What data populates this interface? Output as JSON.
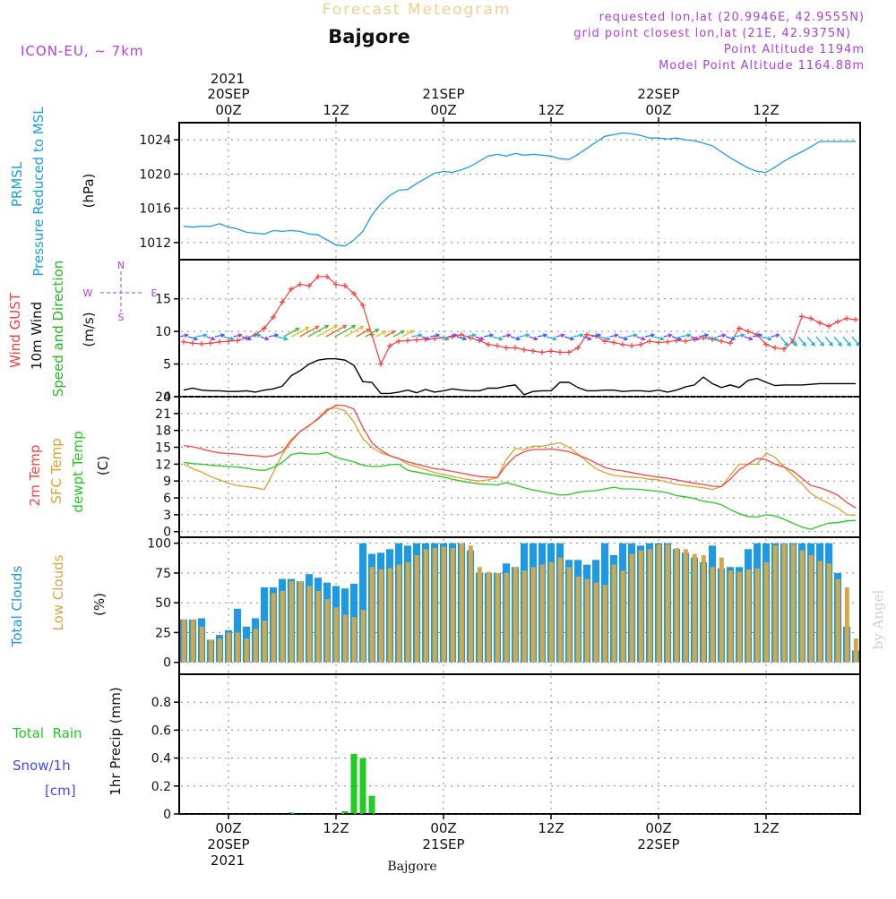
{
  "header": {
    "title": "Forecast Meteogram",
    "location": "Bajgore",
    "model": "ICON-EU, ~ 7km",
    "requested": "requested lon,lat (20.9946E, 42.9555N)",
    "grid_point": "grid point closest lon,lat (21E, 42.9375N)",
    "point_altitude": "Point Altitude 1194m",
    "model_altitude": "Model Point Altitude 1164.88m",
    "credit": "by Angel",
    "footer": "Bajgore"
  },
  "colors": {
    "pressure": "#1aa0e6",
    "gust": "#ff3b3b",
    "wind": "#000000",
    "temp2m": "#ff4444",
    "sfc_temp": "#e0a030",
    "dewpt": "#22cc22",
    "total_clouds": "#1a9ae8",
    "low_clouds": "#d4a848",
    "rain": "#22cc22",
    "snow": "#4444ff",
    "purple": "#b040e0"
  },
  "time_axis": {
    "top_year": "2021",
    "top": [
      {
        "t": 0,
        "date": "20SEP",
        "hour": "00Z"
      },
      {
        "t": 12,
        "date": "",
        "hour": "12Z"
      },
      {
        "t": 24,
        "date": "21SEP",
        "hour": "00Z"
      },
      {
        "t": 36,
        "date": "",
        "hour": "12Z"
      },
      {
        "t": 48,
        "date": "22SEP",
        "hour": "00Z"
      },
      {
        "t": 60,
        "date": "",
        "hour": "12Z"
      }
    ],
    "bottom_year": "2021",
    "bottom": [
      {
        "t": 0,
        "hour": "00Z",
        "date": "20SEP"
      },
      {
        "t": 12,
        "hour": "12Z",
        "date": ""
      },
      {
        "t": 24,
        "hour": "00Z",
        "date": "21SEP"
      },
      {
        "t": 36,
        "hour": "12Z",
        "date": ""
      },
      {
        "t": 48,
        "hour": "00Z",
        "date": "22SEP"
      },
      {
        "t": 60,
        "hour": "12Z",
        "date": ""
      }
    ]
  },
  "panel_labels": {
    "pressure": {
      "a": "PRMSL",
      "b": "Pressure Reduced to MSL",
      "unit": "(hPa)"
    },
    "wind": {
      "a": "Wind GUST",
      "b": "10m Wind",
      "c": "Speed and Direction",
      "unit": "(m/s)",
      "compass_ns": "N",
      "compass_s": "S",
      "compass_w": "W",
      "compass_e": "E"
    },
    "temp": {
      "a": "2m Temp",
      "b": "SFC Temp",
      "c": "dewpt Temp",
      "unit": "(C)"
    },
    "clouds": {
      "a": "Total Clouds",
      "b": "Low Clouds",
      "unit": "(%)"
    },
    "precip": {
      "a": "Total  Rain",
      "b": "Snow/1h",
      "c": "[cm]",
      "unit": "1hr Precip (mm)"
    }
  },
  "chart_data": [
    {
      "type": "line",
      "title": "PRMSL Pressure Reduced to MSL",
      "ylabel": "(hPa)",
      "ylim": [
        1010,
        1026
      ],
      "yticks": [
        "1012",
        "1016",
        "1020",
        "1024"
      ],
      "x_hours_from_20SEP_00Z": [
        -5,
        -4,
        -3,
        -2,
        -1,
        0,
        1,
        2,
        3,
        4,
        5,
        6,
        7,
        8,
        9,
        10,
        11,
        12,
        13,
        14,
        15,
        16,
        17,
        18,
        19,
        20,
        21,
        22,
        23,
        24,
        25,
        26,
        27,
        28,
        29,
        30,
        31,
        32,
        33,
        34,
        35,
        36,
        37,
        38,
        39,
        40,
        41,
        42,
        43,
        44,
        45,
        46,
        47,
        48,
        49,
        50,
        51,
        52,
        53,
        54,
        55,
        56,
        57,
        58,
        59,
        60,
        61,
        62,
        63,
        64,
        65,
        66,
        67,
        68,
        69,
        70
      ],
      "series": [
        {
          "name": "PRMSL",
          "values": [
            1013.9,
            1013.8,
            1013.9,
            1013.9,
            1014.2,
            1013.8,
            1013.6,
            1013.2,
            1013.1,
            1013.0,
            1013.4,
            1013.3,
            1013.4,
            1013.3,
            1013.0,
            1012.9,
            1012.3,
            1011.7,
            1011.6,
            1012.3,
            1013.3,
            1015.2,
            1016.5,
            1017.5,
            1018.1,
            1018.2,
            1018.9,
            1019.5,
            1020.1,
            1020.3,
            1020.2,
            1020.5,
            1020.9,
            1021.5,
            1022.1,
            1022.3,
            1022.1,
            1022.4,
            1022.2,
            1022.3,
            1022.2,
            1022.1,
            1021.8,
            1021.7,
            1022.3,
            1023.0,
            1023.7,
            1024.4,
            1024.6,
            1024.8,
            1024.7,
            1024.5,
            1024.2,
            1024.2,
            1024.1,
            1024.2,
            1024.0,
            1023.9,
            1023.6,
            1023.3,
            1022.6,
            1021.9,
            1021.3,
            1020.7,
            1020.3,
            1020.2,
            1020.8,
            1021.5,
            1022.1,
            1022.6,
            1023.2,
            1023.8,
            1023.8,
            1023.8,
            1023.8,
            1023.8
          ]
        }
      ]
    },
    {
      "type": "line",
      "title": "Wind GUST / 10m Wind Speed and Direction",
      "ylabel": "(m/s)",
      "ylim": [
        0,
        21
      ],
      "yticks": [
        "0",
        "5",
        "10",
        "15"
      ],
      "x_hours_from_20SEP_00Z": [
        -5,
        -4,
        -3,
        -2,
        -1,
        0,
        1,
        2,
        3,
        4,
        5,
        6,
        7,
        8,
        9,
        10,
        11,
        12,
        13,
        14,
        15,
        16,
        17,
        18,
        19,
        20,
        21,
        22,
        23,
        24,
        25,
        26,
        27,
        28,
        29,
        30,
        31,
        32,
        33,
        34,
        35,
        36,
        37,
        38,
        39,
        40,
        41,
        42,
        43,
        44,
        45,
        46,
        47,
        48,
        49,
        50,
        51,
        52,
        53,
        54,
        55,
        56,
        57,
        58,
        59,
        60,
        61,
        62,
        63,
        64,
        65,
        66,
        67,
        68,
        69,
        70
      ],
      "series": [
        {
          "name": "Wind GUST",
          "values": [
            8.4,
            8.2,
            8.1,
            8.2,
            8.4,
            8.5,
            8.6,
            9.0,
            9.5,
            10.5,
            12.2,
            14.5,
            16.5,
            17.2,
            17.0,
            18.4,
            18.4,
            17.2,
            17.0,
            15.8,
            14.0,
            9.5,
            5.0,
            7.8,
            8.5,
            8.6,
            8.7,
            8.8,
            8.9,
            9.0,
            9.2,
            9.5,
            9.0,
            8.6,
            8.0,
            7.8,
            7.5,
            7.5,
            7.2,
            7.0,
            6.8,
            7.0,
            6.8,
            6.8,
            7.5,
            9.5,
            9.3,
            8.5,
            8.3,
            8.0,
            7.8,
            8.0,
            8.5,
            8.3,
            8.4,
            8.6,
            8.5,
            8.8,
            9.0,
            8.8,
            8.5,
            8.2,
            10.5,
            10.0,
            9.5,
            8.0,
            7.5,
            7.3,
            8.5,
            12.3,
            12.0,
            11.3,
            10.8,
            11.5,
            12.0,
            11.8
          ]
        },
        {
          "name": "10m Wind",
          "values": [
            1.0,
            1.3,
            1.0,
            0.9,
            0.9,
            0.8,
            0.8,
            0.9,
            0.7,
            1.0,
            1.2,
            1.6,
            3.2,
            4.0,
            5.0,
            5.6,
            5.8,
            5.8,
            5.6,
            4.8,
            2.3,
            2.2,
            0.5,
            0.5,
            0.7,
            1.0,
            0.6,
            1.1,
            0.7,
            0.9,
            1.2,
            1.0,
            0.9,
            0.9,
            1.3,
            1.3,
            1.6,
            1.8,
            0.3,
            0.8,
            0.9,
            0.9,
            2.2,
            2.2,
            1.4,
            0.9,
            0.9,
            1.0,
            1.0,
            0.8,
            0.9,
            0.9,
            0.8,
            1.0,
            0.7,
            1.0,
            1.5,
            1.8,
            3.0,
            2.0,
            1.4,
            1.8,
            1.4,
            2.5,
            2.8,
            2.2,
            1.7,
            1.8,
            1.8,
            1.8,
            1.9,
            2.0,
            2.0,
            2.0,
            2.0,
            2.0
          ]
        }
      ]
    },
    {
      "type": "line",
      "title": "2m Temp / SFC Temp / dewpt Temp",
      "ylabel": "(C)",
      "ylim": [
        -1,
        24
      ],
      "yticks": [
        "0",
        "3",
        "6",
        "9",
        "12",
        "15",
        "18",
        "21",
        "24"
      ],
      "x_hours_from_20SEP_00Z": [
        -5,
        -4,
        -3,
        -2,
        -1,
        0,
        1,
        2,
        3,
        4,
        5,
        6,
        7,
        8,
        9,
        10,
        11,
        12,
        13,
        14,
        15,
        16,
        17,
        18,
        19,
        20,
        21,
        22,
        23,
        24,
        25,
        26,
        27,
        28,
        29,
        30,
        31,
        32,
        33,
        34,
        35,
        36,
        37,
        38,
        39,
        40,
        41,
        42,
        43,
        44,
        45,
        46,
        47,
        48,
        49,
        50,
        51,
        52,
        53,
        54,
        55,
        56,
        57,
        58,
        59,
        60,
        61,
        62,
        63,
        64,
        65,
        66,
        67,
        68,
        69,
        70
      ],
      "series": [
        {
          "name": "2m Temp",
          "values": [
            15.3,
            15.1,
            14.7,
            14.3,
            14.0,
            13.9,
            13.8,
            13.6,
            13.5,
            13.3,
            13.5,
            14.2,
            16.3,
            17.8,
            18.9,
            20.0,
            21.5,
            22.5,
            22.4,
            21.8,
            18.5,
            15.8,
            14.5,
            13.5,
            13.0,
            12.4,
            12.0,
            11.6,
            11.2,
            11.0,
            10.7,
            10.4,
            10.1,
            9.8,
            9.7,
            9.6,
            11.8,
            13.4,
            14.2,
            14.6,
            14.6,
            14.7,
            14.5,
            14.2,
            13.6,
            13.0,
            12.2,
            11.4,
            11.0,
            10.8,
            10.5,
            10.2,
            9.9,
            9.7,
            9.5,
            9.2,
            8.9,
            8.6,
            8.4,
            8.1,
            8.0,
            9.3,
            11.0,
            12.0,
            13.0,
            12.8,
            12.0,
            11.5,
            10.8,
            9.5,
            8.2,
            7.8,
            7.2,
            6.5,
            5.2,
            4.2
          ]
        },
        {
          "name": "SFC Temp",
          "values": [
            12.0,
            11.2,
            10.6,
            9.8,
            9.2,
            8.6,
            8.2,
            8.0,
            7.8,
            7.5,
            10.5,
            13.7,
            16.0,
            17.8,
            18.8,
            20.2,
            21.8,
            22.0,
            21.5,
            19.5,
            16.5,
            15.0,
            14.0,
            13.5,
            13.0,
            12.0,
            11.5,
            11.0,
            10.5,
            10.2,
            9.8,
            9.5,
            9.2,
            9.0,
            9.2,
            9.6,
            12.8,
            14.8,
            14.6,
            15.2,
            15.2,
            15.5,
            15.8,
            15.0,
            13.8,
            12.5,
            11.2,
            10.5,
            10.0,
            9.8,
            9.7,
            9.6,
            9.3,
            9.2,
            8.8,
            8.4,
            8.2,
            8.0,
            7.8,
            7.5,
            8.0,
            10.0,
            12.0,
            12.0,
            12.0,
            14.0,
            13.2,
            11.5,
            10.0,
            8.5,
            6.8,
            5.8,
            5.0,
            4.2,
            3.0,
            2.9
          ]
        },
        {
          "name": "dewpt Temp",
          "values": [
            12.3,
            12.1,
            12.0,
            11.8,
            11.7,
            11.6,
            11.5,
            11.3,
            11.0,
            10.9,
            11.4,
            12.3,
            13.7,
            14.0,
            13.8,
            13.8,
            14.1,
            13.2,
            12.8,
            12.4,
            11.8,
            11.6,
            11.6,
            11.9,
            12.0,
            10.9,
            10.6,
            10.3,
            10.0,
            9.7,
            9.3,
            9.0,
            8.7,
            8.5,
            8.4,
            8.3,
            8.7,
            8.3,
            7.8,
            7.4,
            7.1,
            6.8,
            6.5,
            6.6,
            7.0,
            7.2,
            7.3,
            7.6,
            7.9,
            7.6,
            7.6,
            7.5,
            7.3,
            7.2,
            6.9,
            6.4,
            6.2,
            5.9,
            5.4,
            5.2,
            4.8,
            3.9,
            3.2,
            2.7,
            2.6,
            3.0,
            2.8,
            2.2,
            1.5,
            0.8,
            0.4,
            1.0,
            1.5,
            1.6,
            1.9,
            2.0
          ]
        }
      ]
    },
    {
      "type": "bar",
      "title": "Total Clouds / Low Clouds",
      "ylabel": "(%)",
      "ylim": [
        -10,
        105
      ],
      "yticks": [
        "0",
        "25",
        "50",
        "75",
        "100"
      ],
      "x_hours_from_20SEP_00Z": [
        -5,
        -4,
        -3,
        -2,
        -1,
        0,
        1,
        2,
        3,
        4,
        5,
        6,
        7,
        8,
        9,
        10,
        11,
        12,
        13,
        14,
        15,
        16,
        17,
        18,
        19,
        20,
        21,
        22,
        23,
        24,
        25,
        26,
        27,
        28,
        29,
        30,
        31,
        32,
        33,
        34,
        35,
        36,
        37,
        38,
        39,
        40,
        41,
        42,
        43,
        44,
        45,
        46,
        47,
        48,
        49,
        50,
        51,
        52,
        53,
        54,
        55,
        56,
        57,
        58,
        59,
        60,
        61,
        62,
        63,
        64,
        65,
        66,
        67,
        68,
        69,
        70
      ],
      "series": [
        {
          "name": "Total Clouds",
          "values": [
            36,
            36,
            37,
            19,
            23,
            27,
            45,
            30,
            37,
            63,
            63,
            70,
            70,
            68,
            74,
            71,
            67,
            64,
            62,
            66,
            100,
            91,
            92,
            95,
            100,
            98,
            100,
            100,
            100,
            100,
            100,
            100,
            94,
            75,
            75,
            75,
            83,
            80,
            100,
            100,
            100,
            100,
            100,
            86,
            86,
            82,
            86,
            100,
            90,
            100,
            100,
            98,
            100,
            100,
            100,
            95,
            92,
            88,
            84,
            98,
            79,
            80,
            80,
            95,
            100,
            100,
            100,
            100,
            100,
            100,
            100,
            100,
            100,
            75,
            30,
            10
          ]
        },
        {
          "name": "Low Clouds",
          "values": [
            36,
            36,
            30,
            19,
            20,
            25,
            25,
            20,
            28,
            35,
            58,
            60,
            68,
            68,
            64,
            60,
            53,
            46,
            40,
            38,
            44,
            80,
            78,
            79,
            82,
            84,
            90,
            95,
            96,
            97,
            96,
            100,
            98,
            80,
            76,
            75,
            75,
            80,
            77,
            80,
            82,
            84,
            88,
            80,
            72,
            70,
            67,
            65,
            82,
            77,
            91,
            94,
            95,
            99,
            99,
            96,
            95,
            91,
            90,
            80,
            88,
            77,
            76,
            78,
            79,
            84,
            98,
            100,
            99,
            94,
            90,
            85,
            83,
            70,
            63,
            20
          ]
        }
      ]
    },
    {
      "type": "bar",
      "title": "1hr Precip (mm)",
      "ylabel": "1hr Precip (mm)",
      "ylim": [
        0,
        1.0
      ],
      "yticks": [
        "0",
        "0.2",
        "0.4",
        "0.6",
        "0.8"
      ],
      "x_hours_from_20SEP_00Z": [
        7,
        13,
        14,
        15,
        16
      ],
      "series": [
        {
          "name": "Total Rain",
          "values": [
            0.01,
            0.02,
            0.43,
            0.4,
            0.13
          ]
        }
      ]
    }
  ]
}
